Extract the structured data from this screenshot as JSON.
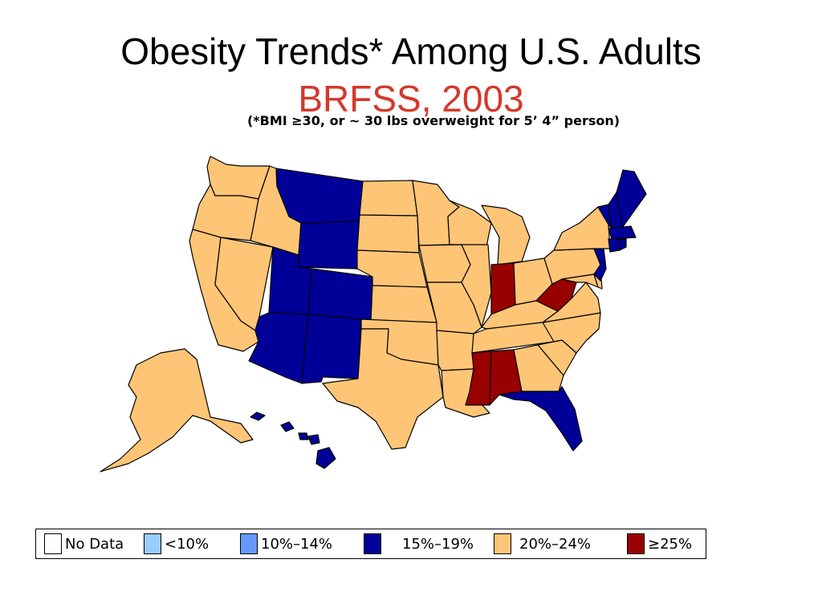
{
  "title": {
    "line1": "Obesity Trends* Among U.S. Adults",
    "line2": "BRFSS, 2003",
    "line2_color": "#d6372b",
    "footnote": "(*BMI ≥30, or ~ 30 lbs overweight for 5’ 4” person)"
  },
  "colors": {
    "no_data": "#ffffff",
    "under10": "#99ccff",
    "c10_14": "#6699ff",
    "c15_19": "#000099",
    "c20_24": "#ffc576",
    "c25plus": "#990000",
    "outline": "#000000"
  },
  "legend": [
    {
      "label": "No Data",
      "color": "#ffffff"
    },
    {
      "label": "<10%",
      "color": "#99ccff"
    },
    {
      "label": "10%–14%",
      "color": "#6699ff"
    },
    {
      "label": "15%–19%",
      "color": "#000099"
    },
    {
      "label": "20%–24%",
      "color": "#ffc576"
    },
    {
      "label": "≥25%",
      "color": "#990000"
    }
  ],
  "state_categories": {
    "15%–19%": [
      "MT",
      "WY",
      "UT",
      "CO",
      "AZ",
      "NM",
      "FL",
      "VT",
      "NH",
      "ME",
      "MA",
      "CT",
      "RI",
      "NJ",
      "HI"
    ],
    "20%–24%": [
      "WA",
      "OR",
      "ID",
      "CA",
      "NV",
      "ND",
      "SD",
      "NE",
      "KS",
      "OK",
      "TX",
      "MN",
      "IA",
      "MO",
      "AR",
      "LA",
      "WI",
      "IL",
      "MI",
      "OH",
      "KY",
      "TN",
      "GA",
      "SC",
      "NC",
      "VA",
      "MD",
      "DE",
      "PA",
      "NY",
      "AK"
    ],
    "≥25%": [
      "IN",
      "MS",
      "AL",
      "WV"
    ]
  }
}
